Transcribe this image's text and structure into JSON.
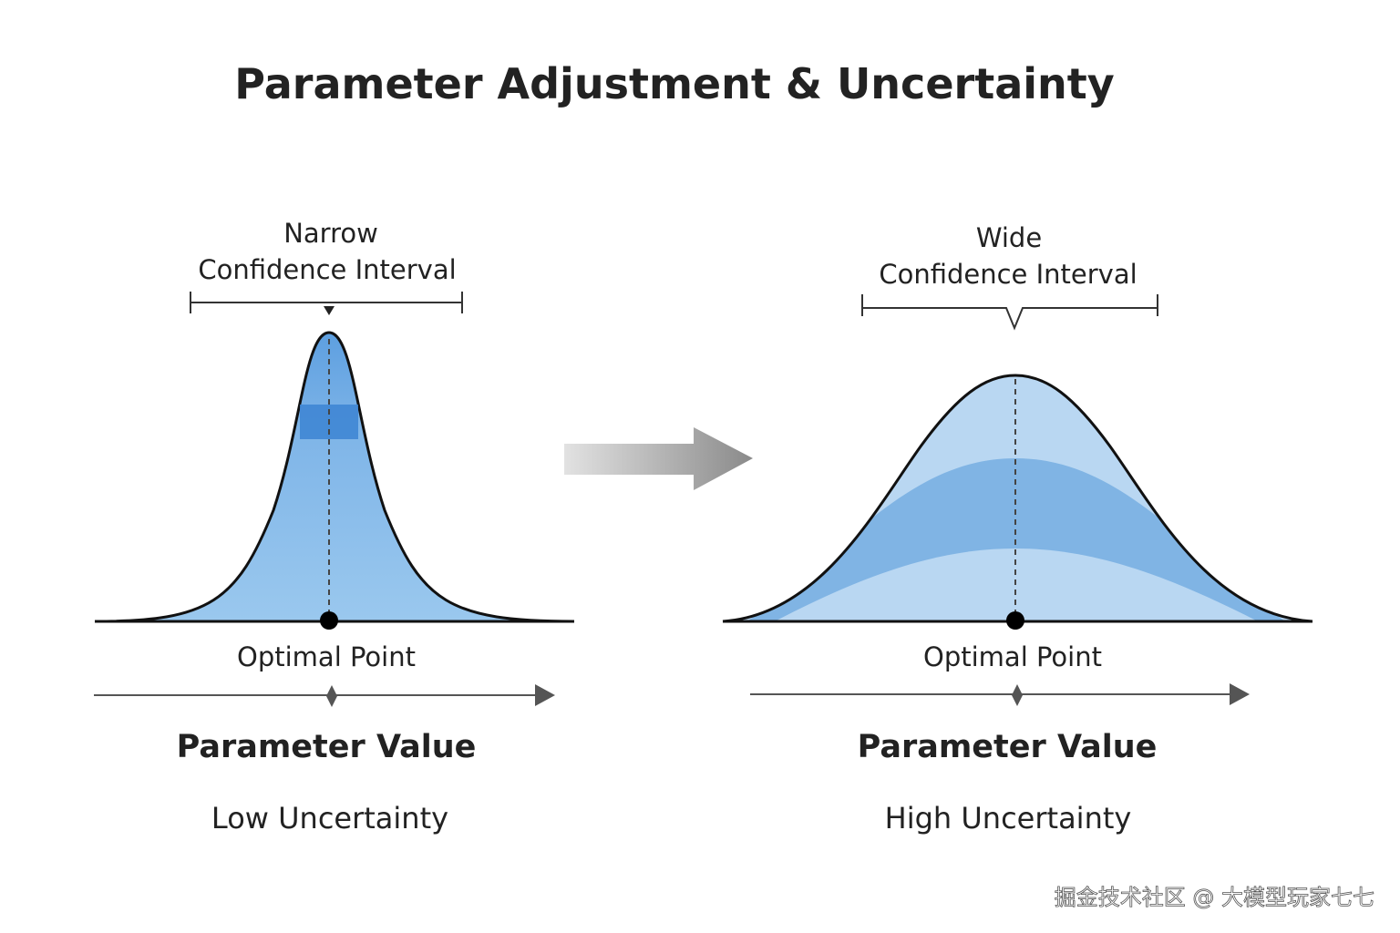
{
  "title": "Parameter Adjustment & Uncertainty",
  "panels": [
    {
      "interval_label": [
        "Narrow",
        "Confidence Interval"
      ],
      "point_label": "Optimal Point",
      "axis_label": "Parameter Value",
      "caption": "Low Uncertainty"
    },
    {
      "interval_label": [
        "Wide",
        "Confidence Interval"
      ],
      "point_label": "Optimal Point",
      "axis_label": "Parameter Value",
      "caption": "High Uncertainty"
    }
  ],
  "watermark": "掘金技术社区 @ 大模型玩家七七"
}
